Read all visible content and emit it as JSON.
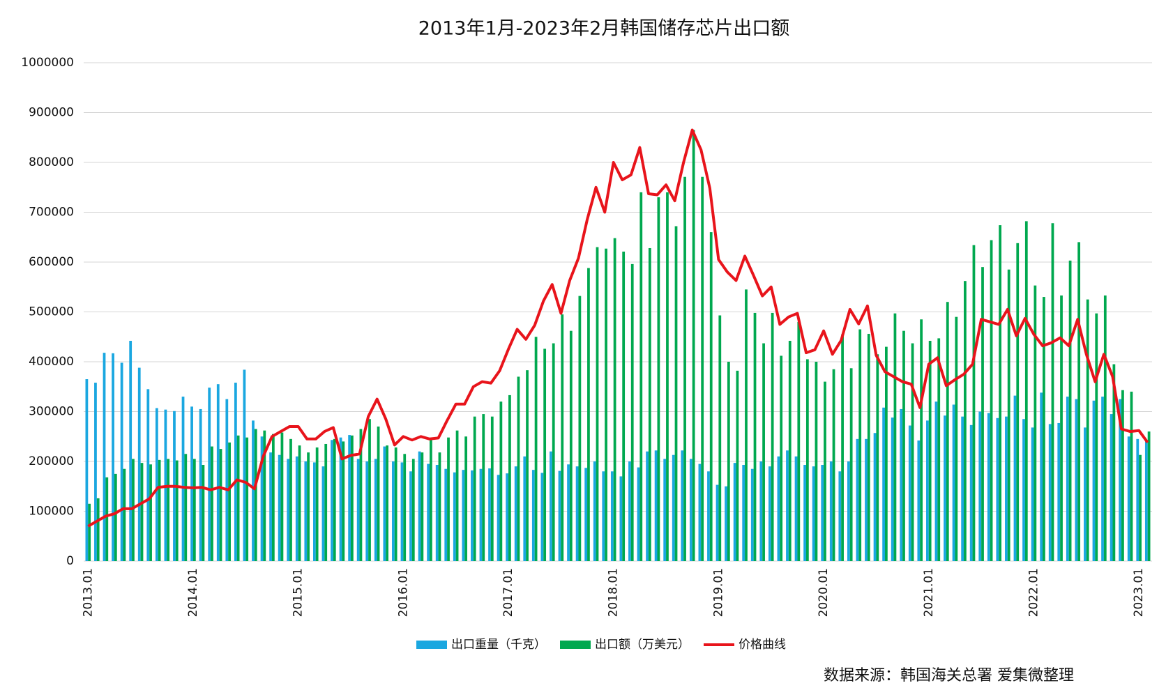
{
  "chart_data": {
    "type": "bar-line",
    "title": "2013年1月-2023年2月韩国储存芯片出口额",
    "source": "数据来源：韩国海关总署 爱集微整理",
    "categories": [
      "2013.01",
      null,
      null,
      null,
      null,
      null,
      null,
      null,
      null,
      null,
      null,
      null,
      "2014.01",
      null,
      null,
      null,
      null,
      null,
      null,
      null,
      null,
      null,
      null,
      null,
      "2015.01",
      null,
      null,
      null,
      null,
      null,
      null,
      null,
      null,
      null,
      null,
      null,
      "2016.01",
      null,
      null,
      null,
      null,
      null,
      null,
      null,
      null,
      null,
      null,
      null,
      "2017.01",
      null,
      null,
      null,
      null,
      null,
      null,
      null,
      null,
      null,
      null,
      null,
      "2018.01",
      null,
      null,
      null,
      null,
      null,
      null,
      null,
      null,
      null,
      null,
      null,
      "2019.01",
      null,
      null,
      null,
      null,
      null,
      null,
      null,
      null,
      null,
      null,
      null,
      "2020.01",
      null,
      null,
      null,
      null,
      null,
      null,
      null,
      null,
      null,
      null,
      null,
      "2021.01",
      null,
      null,
      null,
      null,
      null,
      null,
      null,
      null,
      null,
      null,
      null,
      "2022.01",
      null,
      null,
      null,
      null,
      null,
      null,
      null,
      null,
      null,
      null,
      null,
      "2023.01",
      null
    ],
    "series": [
      {
        "name": "出口重量（千克）",
        "color": "#1aa7e0",
        "kind": "bar",
        "values": [
          365000,
          358000,
          418000,
          417000,
          398000,
          442000,
          388000,
          345000,
          307000,
          304000,
          301000,
          330000,
          310000,
          305000,
          348000,
          355000,
          325000,
          358000,
          384000,
          282000,
          250000,
          218000,
          213000,
          205000,
          210000,
          200000,
          198000,
          190000,
          243000,
          248000,
          253000,
          205000,
          200000,
          205000,
          230000,
          200000,
          198000,
          180000,
          220000,
          195000,
          193000,
          185000,
          178000,
          183000,
          182000,
          185000,
          186000,
          173000,
          176000,
          190000,
          210000,
          183000,
          177000,
          220000,
          181000,
          194000,
          190000,
          187000,
          200000,
          180000,
          180000,
          170000,
          200000,
          188000,
          220000,
          222000,
          205000,
          213000,
          222000,
          205000,
          195000,
          180000,
          153000,
          150000,
          197000,
          193000,
          185000,
          200000,
          190000,
          210000,
          222000,
          210000,
          193000,
          190000,
          193000,
          200000,
          180000,
          200000,
          245000,
          245000,
          257000,
          308000,
          288000,
          305000,
          272000,
          242000,
          282000,
          320000,
          292000,
          314000,
          290000,
          273000,
          300000,
          297000,
          287000,
          290000,
          332000,
          285000,
          268000,
          338000,
          275000,
          277000,
          330000,
          325000,
          268000,
          322000,
          330000,
          295000,
          325000,
          250000,
          245000,
          240000
        ]
      },
      {
        "name": "出口额（万美元）",
        "color": "#00a84f",
        "kind": "bar",
        "values": [
          115000,
          126000,
          168000,
          175000,
          185000,
          205000,
          197000,
          194000,
          203000,
          205000,
          202000,
          215000,
          205000,
          193000,
          230000,
          225000,
          238000,
          252000,
          248000,
          265000,
          262000,
          255000,
          258000,
          245000,
          232000,
          218000,
          228000,
          235000,
          245000,
          240000,
          252000,
          265000,
          285000,
          270000,
          232000,
          228000,
          215000,
          205000,
          218000,
          245000,
          218000,
          248000,
          262000,
          250000,
          290000,
          295000,
          290000,
          320000,
          333000,
          370000,
          383000,
          450000,
          426000,
          437000,
          495000,
          462000,
          532000,
          588000,
          630000,
          627000,
          648000,
          621000,
          596000,
          740000,
          628000,
          730000,
          740000,
          672000,
          771000,
          865000,
          771000,
          660000,
          493000,
          400000,
          382000,
          545000,
          498000,
          437000,
          498000,
          412000,
          442000,
          480000,
          405000,
          400000,
          360000,
          385000,
          455000,
          387000,
          465000,
          456000,
          415000,
          430000,
          497000,
          462000,
          437000,
          485000,
          442000,
          447000,
          520000,
          490000,
          562000,
          634000,
          590000,
          644000,
          674000,
          585000,
          638000,
          682000,
          553000,
          530000,
          678000,
          533000,
          603000,
          640000,
          525000,
          497000,
          533000,
          395000,
          343000,
          340000,
          213000,
          260000
        ]
      },
      {
        "name": "价格曲线",
        "color": "#e8141b",
        "kind": "line",
        "values": [
          70000,
          80000,
          90000,
          95000,
          105000,
          105000,
          115000,
          125000,
          148000,
          150000,
          150000,
          148000,
          147000,
          148000,
          143000,
          148000,
          143000,
          163000,
          158000,
          145000,
          210000,
          250000,
          260000,
          270000,
          270000,
          245000,
          245000,
          260000,
          268000,
          205000,
          212000,
          215000,
          290000,
          325000,
          285000,
          233000,
          250000,
          243000,
          250000,
          245000,
          247000,
          282000,
          315000,
          315000,
          350000,
          360000,
          357000,
          382000,
          425000,
          465000,
          445000,
          473000,
          522000,
          555000,
          497000,
          563000,
          608000,
          685000,
          750000,
          700000,
          800000,
          765000,
          775000,
          830000,
          737000,
          735000,
          755000,
          723000,
          800000,
          865000,
          825000,
          748000,
          605000,
          580000,
          563000,
          612000,
          573000,
          532000,
          550000,
          475000,
          490000,
          497000,
          418000,
          424000,
          462000,
          415000,
          443000,
          505000,
          476000,
          512000,
          413000,
          380000,
          370000,
          360000,
          355000,
          308000,
          395000,
          408000,
          352000,
          364000,
          375000,
          395000,
          485000,
          480000,
          475000,
          505000,
          452000,
          487000,
          455000,
          432000,
          438000,
          448000,
          432000,
          485000,
          415000,
          360000,
          415000,
          370000,
          265000,
          260000,
          262000,
          238000
        ]
      }
    ],
    "ylim": [
      0,
      1000000
    ],
    "yticks": [
      0,
      100000,
      200000,
      300000,
      400000,
      500000,
      600000,
      700000,
      800000,
      900000,
      1000000
    ],
    "grid": true
  }
}
